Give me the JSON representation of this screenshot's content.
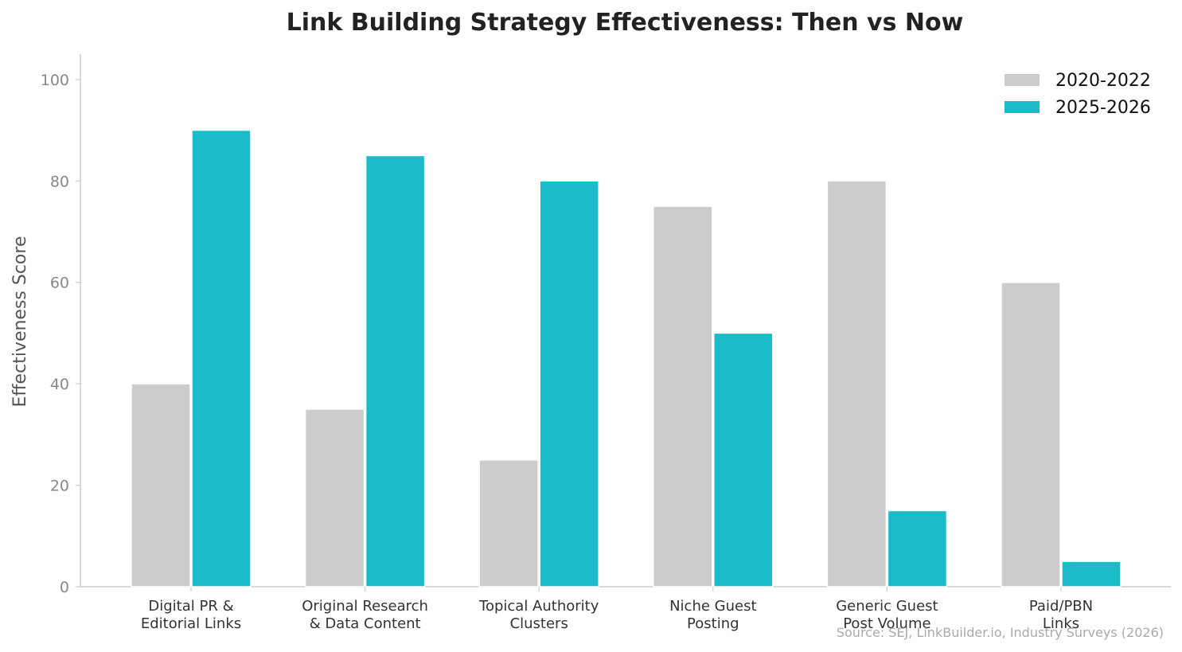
{
  "chart_data": {
    "type": "bar",
    "title": "Link Building Strategy Effectiveness: Then vs Now",
    "ylabel": "Effectiveness Score",
    "xlabel": "",
    "ylim": [
      0,
      105
    ],
    "yticks": [
      0,
      20,
      40,
      60,
      80,
      100
    ],
    "categories": [
      [
        "Digital PR &",
        "Editorial Links"
      ],
      [
        "Original Research",
        "& Data Content"
      ],
      [
        "Topical Authority",
        "Clusters"
      ],
      [
        "Niche Guest",
        "Posting"
      ],
      [
        "Generic Guest",
        "Post Volume"
      ],
      [
        "Paid/PBN",
        "Links"
      ]
    ],
    "series": [
      {
        "name": "2020-2022",
        "color": "#cccccc",
        "values": [
          40,
          35,
          25,
          75,
          80,
          60
        ]
      },
      {
        "name": "2025-2026",
        "color": "#1bbbca",
        "values": [
          90,
          85,
          80,
          50,
          15,
          5
        ]
      }
    ],
    "legend_position": "top-right",
    "grid": false,
    "source": "Source: SEJ, LinkBuilder.io, Industry Surveys (2026)"
  }
}
